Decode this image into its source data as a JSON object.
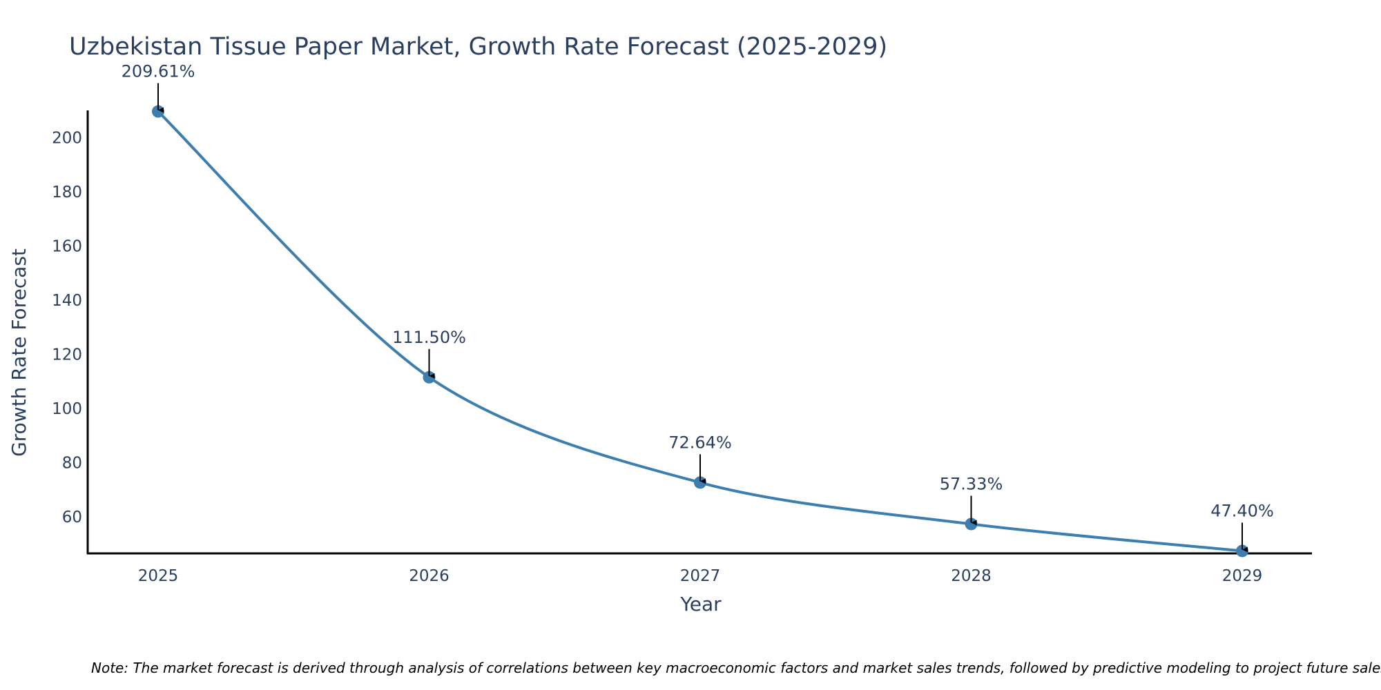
{
  "chart_data": {
    "type": "line",
    "title": "Uzbekistan Tissue Paper Market, Growth Rate Forecast (2025-2029)",
    "xlabel": "Year",
    "ylabel": "Growth Rate Forecast",
    "categories": [
      "2025",
      "2026",
      "2027",
      "2028",
      "2029"
    ],
    "values": [
      209.61,
      111.5,
      72.64,
      57.33,
      47.4
    ],
    "data_labels": [
      "209.61%",
      "111.50%",
      "72.64%",
      "57.33%",
      "47.40%"
    ],
    "yticks": [
      60,
      80,
      100,
      120,
      140,
      160,
      180,
      200
    ],
    "ylim": [
      46.5,
      210
    ],
    "grid": false,
    "line_shape": "spline",
    "note": "Note: The market forecast is derived through analysis of correlations between key macroeconomic factors and market sales trends, followed by predictive modeling to project future sales."
  },
  "colors": {
    "series": "#3d7eb0",
    "axis": "#000000",
    "text": "#2a3f5f",
    "arrow": "#000000"
  }
}
